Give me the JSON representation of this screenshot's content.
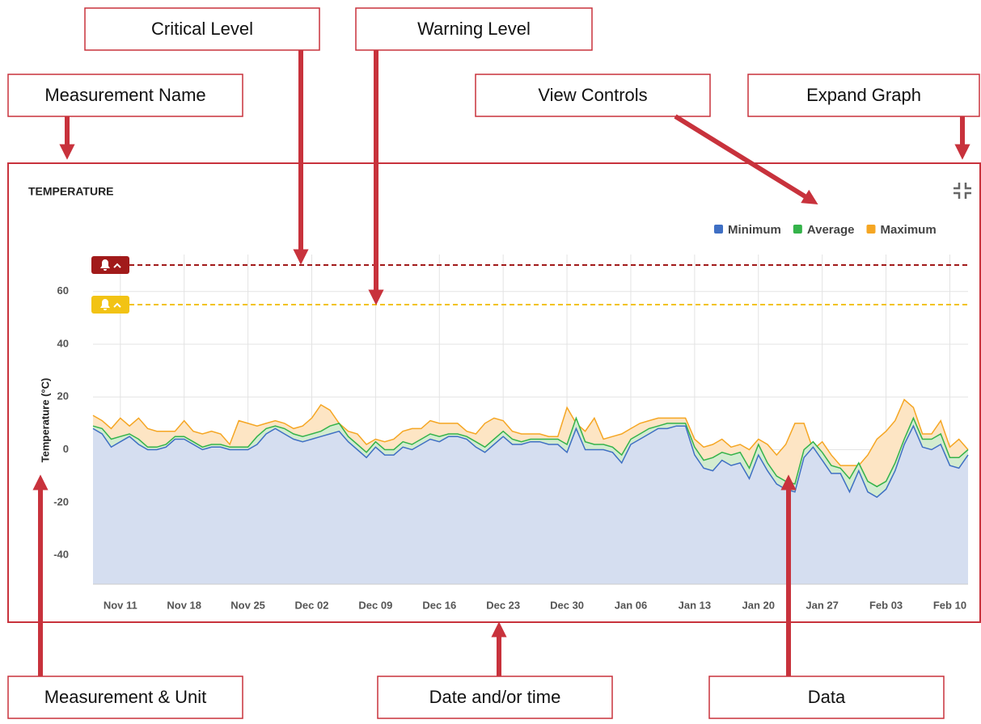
{
  "callouts": [
    "Critical Level",
    "Warning Level",
    "Measurement Name",
    "View Controls",
    "Expand Graph",
    "Measurement & Unit",
    "Date and/or time",
    "Data"
  ],
  "chart_data": {
    "type": "area",
    "title": "TEMPERATURE",
    "y_label": "Temperature (°C)",
    "categories": [
      null,
      null,
      null,
      "Nov 11",
      null,
      null,
      null,
      null,
      null,
      null,
      "Nov 18",
      null,
      null,
      null,
      null,
      null,
      null,
      "Nov 25",
      null,
      null,
      null,
      null,
      null,
      null,
      "Dec 02",
      null,
      null,
      null,
      null,
      null,
      null,
      "Dec 09",
      null,
      null,
      null,
      null,
      null,
      null,
      "Dec 16",
      null,
      null,
      null,
      null,
      null,
      null,
      "Dec 23",
      null,
      null,
      null,
      null,
      null,
      null,
      "Dec 30",
      null,
      null,
      null,
      null,
      null,
      null,
      "Jan 06",
      null,
      null,
      null,
      null,
      null,
      null,
      "Jan 13",
      null,
      null,
      null,
      null,
      null,
      null,
      "Jan 20",
      null,
      null,
      null,
      null,
      null,
      null,
      "Jan 27",
      null,
      null,
      null,
      null,
      null,
      null,
      "Feb 03",
      null,
      null,
      null,
      null,
      null,
      null,
      "Feb 10",
      null,
      null
    ],
    "series": [
      {
        "name": "Maximum",
        "color": "#f5a623",
        "values": [
          13,
          11,
          8,
          12,
          9,
          12,
          8,
          7,
          7,
          7,
          11,
          7,
          6,
          7,
          6,
          2,
          11,
          10,
          9,
          10,
          11,
          10,
          8,
          9,
          12,
          17,
          15,
          10,
          7,
          6,
          2,
          4,
          3,
          4,
          7,
          8,
          8,
          11,
          10,
          10,
          10,
          7,
          6,
          10,
          12,
          11,
          7,
          6,
          6,
          6,
          5,
          5,
          16,
          10,
          7,
          12,
          4,
          5,
          6,
          8,
          10,
          11,
          12,
          12,
          12,
          12,
          4,
          1,
          2,
          4,
          1,
          2,
          0,
          4,
          2,
          -2,
          2,
          10,
          10,
          0,
          3,
          -2,
          -6,
          -6,
          -6,
          -2,
          4,
          7,
          11,
          19,
          16,
          6,
          6,
          11,
          1,
          4,
          0
        ]
      },
      {
        "name": "Average",
        "color": "#34b34a",
        "values": [
          9,
          8,
          4,
          5,
          6,
          4,
          1,
          1,
          2,
          5,
          5,
          3,
          1,
          2,
          2,
          1,
          1,
          1,
          5,
          8,
          9,
          8,
          6,
          5,
          6,
          7,
          9,
          10,
          5,
          2,
          -1,
          3,
          0,
          0,
          3,
          2,
          4,
          6,
          5,
          6,
          6,
          5,
          3,
          1,
          4,
          7,
          4,
          3,
          4,
          4,
          4,
          4,
          2,
          12,
          3,
          2,
          2,
          1,
          -2,
          4,
          6,
          8,
          9,
          10,
          10,
          10,
          1,
          -4,
          -3,
          -1,
          -2,
          -1,
          -7,
          2,
          -5,
          -10,
          -12,
          -13,
          0,
          3,
          -1,
          -6,
          -7,
          -11,
          -5,
          -12,
          -14,
          -12,
          -5,
          4,
          12,
          4,
          4,
          6,
          -3,
          -3,
          0
        ]
      },
      {
        "name": "Minimum",
        "color": "#3f6fc4",
        "values": [
          8,
          6,
          1,
          3,
          5,
          2,
          0,
          0,
          1,
          4,
          4,
          2,
          0,
          1,
          1,
          0,
          0,
          0,
          2,
          6,
          8,
          6,
          4,
          3,
          4,
          5,
          6,
          7,
          3,
          0,
          -3,
          1,
          -2,
          -2,
          1,
          0,
          2,
          4,
          3,
          5,
          5,
          4,
          1,
          -1,
          2,
          5,
          2,
          2,
          3,
          3,
          2,
          2,
          -1,
          8,
          0,
          0,
          0,
          -1,
          -5,
          2,
          4,
          6,
          8,
          8,
          9,
          9,
          -2,
          -7,
          -8,
          -4,
          -6,
          -5,
          -11,
          -2,
          -8,
          -13,
          -15,
          -16,
          -3,
          1,
          -4,
          -9,
          -9,
          -16,
          -8,
          -16,
          -18,
          -15,
          -8,
          2,
          9,
          1,
          0,
          2,
          -6,
          -7,
          -2
        ]
      }
    ],
    "legend_order": [
      "Minimum",
      "Average",
      "Maximum"
    ],
    "critical_level": {
      "value": 70,
      "color": "#a11a1a"
    },
    "warning_level": {
      "value": 55,
      "color": "#f2c314"
    },
    "ylim": [
      -51,
      74
    ],
    "yticks": [
      -40,
      -20,
      0,
      20,
      40,
      60
    ],
    "grid": true
  }
}
